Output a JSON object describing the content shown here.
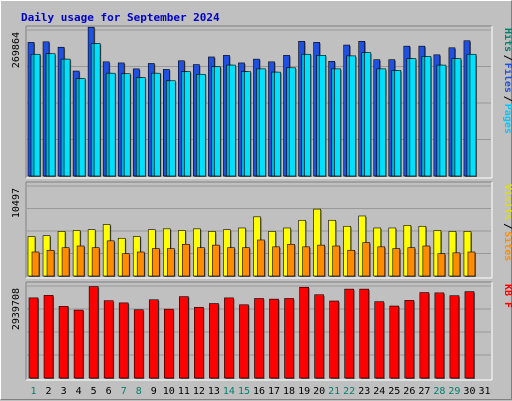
{
  "chart_data": {
    "type": "bar",
    "title": "Daily usage for September 2024",
    "title_color": "#0000cc",
    "categories": [
      "1",
      "2",
      "3",
      "4",
      "5",
      "6",
      "7",
      "8",
      "9",
      "10",
      "11",
      "12",
      "13",
      "14",
      "15",
      "16",
      "17",
      "18",
      "19",
      "20",
      "21",
      "22",
      "23",
      "24",
      "25",
      "26",
      "27",
      "28",
      "29",
      "30",
      "31"
    ],
    "weekend_days": [
      "1",
      "7",
      "8",
      "14",
      "15",
      "21",
      "22",
      "28",
      "29"
    ],
    "weekend_color": "#00806b",
    "weekday_color": "#000000",
    "panels": [
      {
        "id": "hits-files-pages",
        "max_label": "269864",
        "ymax": 269864,
        "series": [
          {
            "name": "Hits",
            "color": "#2050e0",
            "values": [
              247000,
              248000,
              238000,
              194000,
              275000,
              211000,
              209000,
              198000,
              208000,
              197000,
              213000,
              206000,
              220000,
              223000,
              209000,
              216000,
              211000,
              223000,
              249000,
              247000,
              212000,
              242000,
              249000,
              215000,
              215000,
              240000,
              240000,
              224000,
              237000,
              250000,
              0
            ]
          },
          {
            "name": "Files",
            "color": "#00b0d0",
            "values": [
              225000,
              226000,
              216000,
              180000,
              245000,
              190000,
              189000,
              182000,
              190000,
              176000,
              193000,
              188000,
              202000,
              205000,
              193000,
              198000,
              192000,
              200000,
              225000,
              223000,
              198000,
              222000,
              228000,
              198000,
              195000,
              217000,
              221000,
              205000,
              217000,
              225000,
              0
            ]
          },
          {
            "name": "Pages",
            "color": "#00e0ff",
            "values": [
              225000,
              226000,
              216000,
              180000,
              245000,
              190000,
              189000,
              182000,
              190000,
              176000,
              193000,
              188000,
              202000,
              205000,
              193000,
              198000,
              192000,
              200000,
              225000,
              223000,
              198000,
              222000,
              228000,
              198000,
              195000,
              217000,
              221000,
              205000,
              217000,
              225000,
              0
            ]
          }
        ],
        "legend": [
          {
            "text": "Hits",
            "color": "#00806b"
          },
          {
            "text": "Files",
            "color": "#2050e0"
          },
          {
            "text": "Pages",
            "color": "#00c8ff"
          }
        ]
      },
      {
        "id": "visits-sites",
        "max_label": "10497",
        "ymax": 10497,
        "series": [
          {
            "name": "Visits",
            "color": "#ffff00",
            "values": [
              4600,
              4700,
              5200,
              5300,
              5400,
              6000,
              4400,
              4600,
              5400,
              5500,
              5300,
              5500,
              5200,
              5400,
              5600,
              6900,
              5200,
              5600,
              6500,
              7800,
              6500,
              5800,
              7000,
              5600,
              5600,
              5900,
              5800,
              5300,
              5200,
              5200,
              0
            ]
          },
          {
            "name": "Sites",
            "color": "#ff8c00",
            "values": [
              2800,
              3000,
              3300,
              3500,
              3300,
              4100,
              2600,
              2800,
              3200,
              3200,
              3700,
              3300,
              3600,
              3300,
              3300,
              4200,
              3400,
              3700,
              3400,
              3600,
              3500,
              3000,
              3900,
              3400,
              3200,
              3300,
              3500,
              2600,
              2700,
              2800,
              0
            ]
          }
        ],
        "legend": [
          {
            "text": "Visits",
            "color": "#e0e000"
          },
          {
            "text": "Sites",
            "color": "#ff8c00"
          }
        ]
      },
      {
        "id": "kbytes",
        "max_label": "2939708",
        "ymax": 2939708,
        "series": [
          {
            "name": "KBytes",
            "color": "#ff0000",
            "values": [
              2560000,
              2640000,
              2290000,
              2170000,
              2920000,
              2470000,
              2400000,
              2180000,
              2500000,
              2200000,
              2600000,
              2260000,
              2380000,
              2560000,
              2340000,
              2540000,
              2520000,
              2540000,
              2900000,
              2660000,
              2460000,
              2840000,
              2840000,
              2440000,
              2300000,
              2480000,
              2730000,
              2720000,
              2630000,
              2760000,
              0
            ]
          }
        ],
        "legend": [
          {
            "text": "KB F",
            "color": "#ff0000"
          }
        ]
      }
    ]
  }
}
